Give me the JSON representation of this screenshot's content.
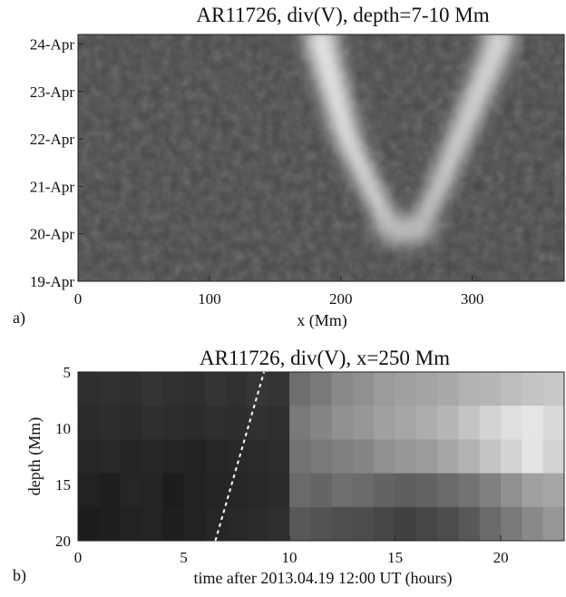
{
  "chart_data": [
    {
      "type": "heatmap",
      "panel_label": "a)",
      "title": "AR11726, div(V), depth=7-10 Mm",
      "xlabel": "x (Mm)",
      "ylabel": "",
      "xlim": [
        0,
        370
      ],
      "ylim_days": [
        19,
        24.2
      ],
      "x_ticks": [
        0,
        100,
        200,
        300
      ],
      "x_tick_labels": [
        "0",
        "100",
        "200",
        "300"
      ],
      "y_ticks_days": [
        19,
        20,
        21,
        22,
        23,
        24
      ],
      "y_tick_labels": [
        "19-Apr",
        "20-Apr",
        "21-Apr",
        "22-Apr",
        "23-Apr",
        "24-Apr"
      ],
      "colormap": "grayscale",
      "features": [
        {
          "description": "bright V-shaped divergence band",
          "points": [
            {
              "date": "24-Apr",
              "x_left": 185,
              "x_right": 320
            },
            {
              "date": "23-Apr",
              "x_left": 195,
              "x_right": 305
            },
            {
              "date": "22-Apr",
              "x_left": 205,
              "x_right": 290
            },
            {
              "date": "21-Apr",
              "x_left": 222,
              "x_right": 275
            },
            {
              "date": "20-Apr",
              "x_left": 240,
              "x_right": 258
            }
          ]
        }
      ]
    },
    {
      "type": "heatmap",
      "panel_label": "b)",
      "title": "AR11726, div(V), x=250 Mm",
      "xlabel": "time after 2013.04.19 12:00 UT (hours)",
      "ylabel": "depth (Mm)",
      "xlim": [
        0,
        23
      ],
      "ylim": [
        20,
        5
      ],
      "x_ticks": [
        0,
        5,
        10,
        15,
        20
      ],
      "y_ticks": [
        5,
        10,
        15,
        20
      ],
      "colormap": "grayscale",
      "rows_depth_center": [
        6,
        9,
        12,
        15,
        18.5
      ],
      "grid_values": [
        [
          0.12,
          0.13,
          0.12,
          0.14,
          0.13,
          0.12,
          0.14,
          0.13,
          0.15,
          0.14,
          0.4,
          0.45,
          0.52,
          0.55,
          0.6,
          0.62,
          0.64,
          0.66,
          0.7,
          0.72,
          0.75,
          0.78,
          0.8
        ],
        [
          0.1,
          0.11,
          0.1,
          0.12,
          0.11,
          0.1,
          0.12,
          0.11,
          0.13,
          0.12,
          0.45,
          0.5,
          0.55,
          0.58,
          0.62,
          0.65,
          0.68,
          0.72,
          0.78,
          0.85,
          0.9,
          0.93,
          0.88
        ],
        [
          0.08,
          0.09,
          0.07,
          0.08,
          0.07,
          0.06,
          0.08,
          0.09,
          0.1,
          0.11,
          0.42,
          0.45,
          0.48,
          0.5,
          0.55,
          0.58,
          0.6,
          0.65,
          0.7,
          0.78,
          0.85,
          0.92,
          0.85
        ],
        [
          0.06,
          0.05,
          0.08,
          0.07,
          0.04,
          0.06,
          0.07,
          0.08,
          0.09,
          0.1,
          0.38,
          0.36,
          0.4,
          0.38,
          0.35,
          0.33,
          0.35,
          0.38,
          0.42,
          0.48,
          0.55,
          0.62,
          0.65
        ],
        [
          0.04,
          0.05,
          0.06,
          0.07,
          0.05,
          0.06,
          0.08,
          0.09,
          0.1,
          0.12,
          0.3,
          0.28,
          0.26,
          0.25,
          0.22,
          0.2,
          0.22,
          0.25,
          0.3,
          0.38,
          0.45,
          0.52,
          0.58
        ]
      ],
      "annotation_line": {
        "style": "dashed",
        "color": "#ffffff",
        "from": {
          "time_hours": 6.5,
          "depth_mm": 20
        },
        "to": {
          "time_hours": 8.8,
          "depth_mm": 5
        }
      }
    }
  ]
}
